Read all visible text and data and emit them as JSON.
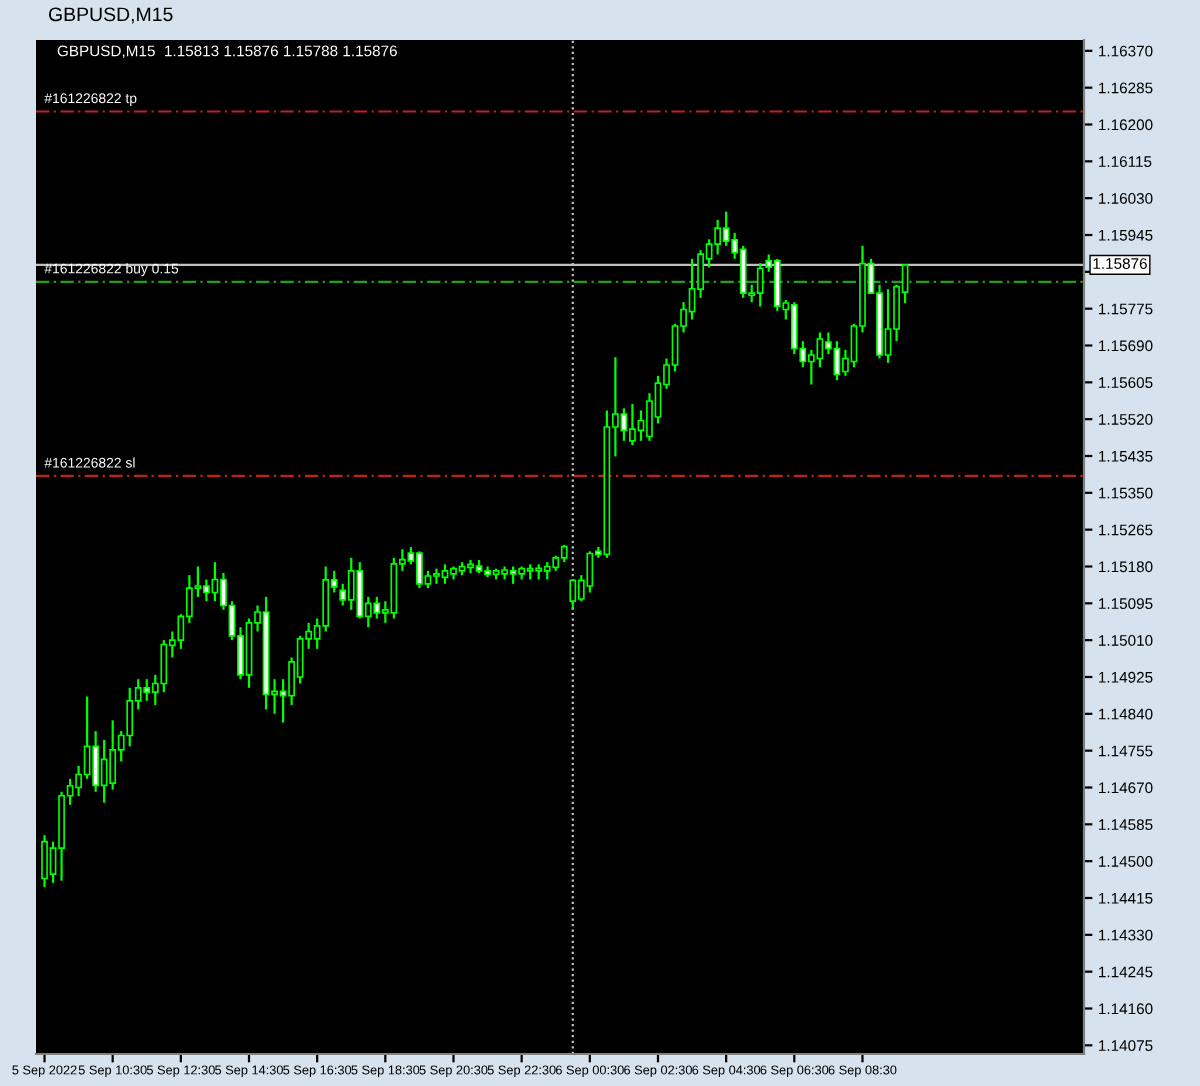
{
  "chart_data": {
    "type": "candlestick",
    "title": "GBPUSD,M15",
    "subtitle": "GBPUSD,M15  1.15813 1.15876 1.15788 1.15876",
    "color": "#00ff00",
    "x": [
      "2022-09-05T08:30",
      "2022-09-05T08:45",
      "2022-09-05T09:00",
      "2022-09-05T09:15",
      "2022-09-05T09:30",
      "2022-09-05T09:45",
      "2022-09-05T10:00",
      "2022-09-05T10:15",
      "2022-09-05T10:30",
      "2022-09-05T10:45",
      "2022-09-05T11:00",
      "2022-09-05T11:15",
      "2022-09-05T11:30",
      "2022-09-05T11:45",
      "2022-09-05T12:00",
      "2022-09-05T12:15",
      "2022-09-05T12:30",
      "2022-09-05T12:45",
      "2022-09-05T13:00",
      "2022-09-05T13:15",
      "2022-09-05T13:30",
      "2022-09-05T13:45",
      "2022-09-05T14:00",
      "2022-09-05T14:15",
      "2022-09-05T14:30",
      "2022-09-05T14:45",
      "2022-09-05T15:00",
      "2022-09-05T15:15",
      "2022-09-05T15:30",
      "2022-09-05T15:45",
      "2022-09-05T16:00",
      "2022-09-05T16:15",
      "2022-09-05T16:30",
      "2022-09-05T16:45",
      "2022-09-05T17:00",
      "2022-09-05T17:15",
      "2022-09-05T17:30",
      "2022-09-05T17:45",
      "2022-09-05T18:00",
      "2022-09-05T18:15",
      "2022-09-05T18:30",
      "2022-09-05T18:45",
      "2022-09-05T19:00",
      "2022-09-05T19:15",
      "2022-09-05T19:30",
      "2022-09-05T19:45",
      "2022-09-05T20:00",
      "2022-09-05T20:15",
      "2022-09-05T20:30",
      "2022-09-05T20:45",
      "2022-09-05T21:00",
      "2022-09-05T21:15",
      "2022-09-05T21:30",
      "2022-09-05T21:45",
      "2022-09-05T22:00",
      "2022-09-05T22:15",
      "2022-09-05T22:30",
      "2022-09-05T22:45",
      "2022-09-05T23:00",
      "2022-09-05T23:15",
      "2022-09-05T23:30",
      "2022-09-05T23:45",
      "2022-09-06T00:00",
      "2022-09-06T00:15",
      "2022-09-06T00:30",
      "2022-09-06T00:45",
      "2022-09-06T01:00",
      "2022-09-06T01:15",
      "2022-09-06T01:30",
      "2022-09-06T01:45",
      "2022-09-06T02:00",
      "2022-09-06T02:15",
      "2022-09-06T02:30",
      "2022-09-06T02:45",
      "2022-09-06T03:00",
      "2022-09-06T03:15",
      "2022-09-06T03:30",
      "2022-09-06T03:45",
      "2022-09-06T04:00",
      "2022-09-06T04:15",
      "2022-09-06T04:30",
      "2022-09-06T04:45",
      "2022-09-06T05:00",
      "2022-09-06T05:15",
      "2022-09-06T05:30",
      "2022-09-06T05:45",
      "2022-09-06T06:00",
      "2022-09-06T06:15",
      "2022-09-06T06:30",
      "2022-09-06T06:45",
      "2022-09-06T07:00",
      "2022-09-06T07:15",
      "2022-09-06T07:30",
      "2022-09-06T07:45",
      "2022-09-06T08:00",
      "2022-09-06T08:15",
      "2022-09-06T08:30",
      "2022-09-06T08:45",
      "2022-09-06T09:00",
      "2022-09-06T09:15",
      "2022-09-06T09:30",
      "2022-09-06T09:45"
    ],
    "ohlc": [
      [
        1.1446,
        1.1456,
        1.1444,
        1.14545
      ],
      [
        1.1447,
        1.14545,
        1.1445,
        1.1453
      ],
      [
        1.1453,
        1.1466,
        1.14455,
        1.14651
      ],
      [
        1.14651,
        1.1469,
        1.1463,
        1.14674
      ],
      [
        1.1467,
        1.1472,
        1.1465,
        1.147
      ],
      [
        1.147,
        1.1488,
        1.1469,
        1.14765
      ],
      [
        1.14765,
        1.148,
        1.1466,
        1.14675
      ],
      [
        1.14675,
        1.1478,
        1.14635,
        1.14735
      ],
      [
        1.1468,
        1.14825,
        1.14665,
        1.14757
      ],
      [
        1.14757,
        1.148,
        1.1473,
        1.1479
      ],
      [
        1.1479,
        1.149,
        1.14765,
        1.1487
      ],
      [
        1.1487,
        1.1492,
        1.1485,
        1.149
      ],
      [
        1.149,
        1.1492,
        1.1487,
        1.1489
      ],
      [
        1.1489,
        1.1493,
        1.1486,
        1.1491
      ],
      [
        1.1491,
        1.1501,
        1.1489,
        1.15
      ],
      [
        1.14998,
        1.1503,
        1.1497,
        1.1501
      ],
      [
        1.1501,
        1.1507,
        1.1499,
        1.15065
      ],
      [
        1.15065,
        1.1516,
        1.1505,
        1.1513
      ],
      [
        1.1513,
        1.1518,
        1.1511,
        1.15135
      ],
      [
        1.15135,
        1.1515,
        1.151,
        1.1512
      ],
      [
        1.1512,
        1.1519,
        1.151,
        1.1515
      ],
      [
        1.1515,
        1.15165,
        1.1508,
        1.1509
      ],
      [
        1.1509,
        1.151,
        1.1501,
        1.1502
      ],
      [
        1.1502,
        1.1504,
        1.1492,
        1.1493
      ],
      [
        1.1493,
        1.1506,
        1.149,
        1.1505
      ],
      [
        1.1505,
        1.1509,
        1.1503,
        1.15075
      ],
      [
        1.15075,
        1.1511,
        1.1485,
        1.14885
      ],
      [
        1.14885,
        1.1492,
        1.1484,
        1.14892
      ],
      [
        1.14892,
        1.1492,
        1.1482,
        1.14882
      ],
      [
        1.14882,
        1.1497,
        1.1486,
        1.1496
      ],
      [
        1.14925,
        1.1502,
        1.1491,
        1.15013
      ],
      [
        1.15013,
        1.1505,
        1.1499,
        1.1503
      ],
      [
        1.15013,
        1.1506,
        1.1499,
        1.15043
      ],
      [
        1.15043,
        1.1518,
        1.1503,
        1.15149
      ],
      [
        1.15149,
        1.1517,
        1.1512,
        1.15133
      ],
      [
        1.15125,
        1.1514,
        1.1509,
        1.15103
      ],
      [
        1.15103,
        1.152,
        1.1508,
        1.1517
      ],
      [
        1.1517,
        1.1519,
        1.1506,
        1.15065
      ],
      [
        1.15065,
        1.1511,
        1.1504,
        1.15095
      ],
      [
        1.15095,
        1.1511,
        1.1506,
        1.15073
      ],
      [
        1.15073,
        1.151,
        1.1505,
        1.1508
      ],
      [
        1.15073,
        1.152,
        1.1506,
        1.15186
      ],
      [
        1.15186,
        1.1522,
        1.1517,
        1.15196
      ],
      [
        1.15211,
        1.15225,
        1.15185,
        1.15193
      ],
      [
        1.15211,
        1.15215,
        1.1513,
        1.1514
      ],
      [
        1.1514,
        1.1517,
        1.1513,
        1.15158
      ],
      [
        1.15158,
        1.15175,
        1.1514,
        1.15163
      ],
      [
        1.15155,
        1.15185,
        1.1514,
        1.1517
      ],
      [
        1.15163,
        1.1518,
        1.1515,
        1.15175
      ],
      [
        1.1517,
        1.1519,
        1.1516,
        1.1518
      ],
      [
        1.15178,
        1.15195,
        1.15165,
        1.15185
      ],
      [
        1.15181,
        1.15195,
        1.15165,
        1.1517
      ],
      [
        1.1517,
        1.1518,
        1.15155,
        1.15162
      ],
      [
        1.15162,
        1.15175,
        1.1515,
        1.1517
      ],
      [
        1.15163,
        1.1518,
        1.1515,
        1.15172
      ],
      [
        1.1517,
        1.1518,
        1.1514,
        1.15163
      ],
      [
        1.15163,
        1.1518,
        1.1515,
        1.15175
      ],
      [
        1.1517,
        1.15185,
        1.1515,
        1.15175
      ],
      [
        1.1517,
        1.15185,
        1.1515,
        1.15176
      ],
      [
        1.1517,
        1.1519,
        1.1515,
        1.1518
      ],
      [
        1.15178,
        1.15205,
        1.1517,
        1.152
      ],
      [
        1.152,
        1.1523,
        1.1519,
        1.15226
      ],
      [
        1.151,
        1.1515,
        1.1508,
        1.15148
      ],
      [
        1.15105,
        1.1516,
        1.151,
        1.15148
      ],
      [
        1.15135,
        1.15215,
        1.1512,
        1.1521
      ],
      [
        1.15215,
        1.15225,
        1.152,
        1.15208
      ],
      [
        1.15208,
        1.1554,
        1.152,
        1.15502
      ],
      [
        1.15502,
        1.15663,
        1.15434,
        1.15532
      ],
      [
        1.15532,
        1.15545,
        1.1547,
        1.15494
      ],
      [
        1.1547,
        1.15555,
        1.1546,
        1.15497
      ],
      [
        1.15494,
        1.1554,
        1.1547,
        1.15517
      ],
      [
        1.1548,
        1.1558,
        1.1547,
        1.15562
      ],
      [
        1.15525,
        1.1562,
        1.1551,
        1.15603
      ],
      [
        1.156,
        1.1566,
        1.1559,
        1.15645
      ],
      [
        1.15645,
        1.1574,
        1.1563,
        1.15735
      ],
      [
        1.15735,
        1.1579,
        1.1572,
        1.15773
      ],
      [
        1.15768,
        1.1589,
        1.1575,
        1.15821
      ],
      [
        1.1582,
        1.1591,
        1.158,
        1.15901
      ],
      [
        1.1589,
        1.15935,
        1.1587,
        1.15924
      ],
      [
        1.15924,
        1.1598,
        1.159,
        1.15961
      ],
      [
        1.15961,
        1.15999,
        1.1592,
        1.15931
      ],
      [
        1.15934,
        1.1595,
        1.1589,
        1.15904
      ],
      [
        1.15912,
        1.1592,
        1.158,
        1.15811
      ],
      [
        1.15806,
        1.1583,
        1.1579,
        1.15811
      ],
      [
        1.15811,
        1.1588,
        1.1578,
        1.15868
      ],
      [
        1.15886,
        1.159,
        1.1586,
        1.15871
      ],
      [
        1.15886,
        1.1589,
        1.1577,
        1.15781
      ],
      [
        1.15773,
        1.15795,
        1.1575,
        1.15788
      ],
      [
        1.15784,
        1.1579,
        1.1567,
        1.15683
      ],
      [
        1.15683,
        1.157,
        1.1564,
        1.15653
      ],
      [
        1.15653,
        1.1568,
        1.156,
        1.15668
      ],
      [
        1.1566,
        1.1572,
        1.1564,
        1.15705
      ],
      [
        1.15698,
        1.1572,
        1.1567,
        1.15683
      ],
      [
        1.15683,
        1.157,
        1.1561,
        1.15623
      ],
      [
        1.1563,
        1.1568,
        1.1562,
        1.1566
      ],
      [
        1.15653,
        1.1574,
        1.1564,
        1.15735
      ],
      [
        1.15735,
        1.1592,
        1.1572,
        1.15879
      ],
      [
        1.15879,
        1.1589,
        1.1581,
        1.15811
      ],
      [
        1.15811,
        1.1583,
        1.1566,
        1.15668
      ],
      [
        1.15668,
        1.1582,
        1.1565,
        1.15728
      ],
      [
        1.15728,
        1.1583,
        1.157,
        1.15826
      ],
      [
        1.15813,
        1.15876,
        1.15788,
        1.15876
      ]
    ],
    "xlim": [
      "2022-09-05T08:15",
      "2022-09-06T15:00"
    ],
    "xticks": [
      {
        "value": "2022-09-05T08:30",
        "label": "5 Sep 2022"
      },
      {
        "value": "2022-09-05T10:30",
        "label": "5 Sep 10:30"
      },
      {
        "value": "2022-09-05T12:30",
        "label": "5 Sep 12:30"
      },
      {
        "value": "2022-09-05T14:30",
        "label": "5 Sep 14:30"
      },
      {
        "value": "2022-09-05T16:30",
        "label": "5 Sep 16:30"
      },
      {
        "value": "2022-09-05T18:30",
        "label": "5 Sep 18:30"
      },
      {
        "value": "2022-09-05T20:30",
        "label": "5 Sep 20:30"
      },
      {
        "value": "2022-09-05T22:30",
        "label": "5 Sep 22:30"
      },
      {
        "value": "2022-09-06T00:30",
        "label": "6 Sep 00:30"
      },
      {
        "value": "2022-09-06T02:30",
        "label": "6 Sep 02:30"
      },
      {
        "value": "2022-09-06T04:30",
        "label": "6 Sep 04:30"
      },
      {
        "value": "2022-09-06T06:30",
        "label": "6 Sep 06:30"
      },
      {
        "value": "2022-09-06T08:30",
        "label": "6 Sep 08:30"
      }
    ],
    "ylim": [
      1.14055,
      1.16395
    ],
    "yticks": [
      {
        "value": 1.1637,
        "label": "1.16370"
      },
      {
        "value": 1.16285,
        "label": "1.16285"
      },
      {
        "value": 1.162,
        "label": "1.16200"
      },
      {
        "value": 1.16115,
        "label": "1.16115"
      },
      {
        "value": 1.1603,
        "label": "1.16030"
      },
      {
        "value": 1.15945,
        "label": "1.15945"
      },
      {
        "value": 1.1586,
        "label": null
      },
      {
        "value": 1.15775,
        "label": "1.15775"
      },
      {
        "value": 1.1569,
        "label": "1.15690"
      },
      {
        "value": 1.15605,
        "label": "1.15605"
      },
      {
        "value": 1.1552,
        "label": "1.15520"
      },
      {
        "value": 1.15435,
        "label": "1.15435"
      },
      {
        "value": 1.1535,
        "label": "1.15350"
      },
      {
        "value": 1.15265,
        "label": "1.15265"
      },
      {
        "value": 1.1518,
        "label": "1.15180"
      },
      {
        "value": 1.15095,
        "label": "1.15095"
      },
      {
        "value": 1.1501,
        "label": "1.15010"
      },
      {
        "value": 1.14925,
        "label": "1.14925"
      },
      {
        "value": 1.1484,
        "label": "1.14840"
      },
      {
        "value": 1.14755,
        "label": "1.14755"
      },
      {
        "value": 1.1467,
        "label": "1.14670"
      },
      {
        "value": 1.14585,
        "label": "1.14585"
      },
      {
        "value": 1.145,
        "label": "1.14500"
      },
      {
        "value": 1.14415,
        "label": "1.14415"
      },
      {
        "value": 1.1433,
        "label": "1.14330"
      },
      {
        "value": 1.14245,
        "label": "1.14245"
      },
      {
        "value": 1.1416,
        "label": "1.14160"
      },
      {
        "value": 1.14075,
        "label": "1.14075"
      }
    ],
    "ref_lines": [
      {
        "axis": "y",
        "value": 1.1623,
        "label": "#161226822 tp",
        "color": "#c02020",
        "line_style": "dashed"
      },
      {
        "axis": "y",
        "value": 1.15876,
        "label": "1.15876",
        "color": "#c0c0c0",
        "line_style": "solid"
      },
      {
        "axis": "y",
        "value": 1.15837,
        "label": "#161226822 buy 0.15",
        "color": "#20a020",
        "line_style": "dashed"
      },
      {
        "axis": "y",
        "value": 1.15389,
        "label": "#161226822 sl",
        "color": "#c02020",
        "line_style": "dashed"
      },
      {
        "axis": "x",
        "value": "2022-09-06T00:00",
        "color": "#c0c0c0",
        "line_style": "dotted"
      }
    ],
    "grid": false,
    "legend": false
  }
}
